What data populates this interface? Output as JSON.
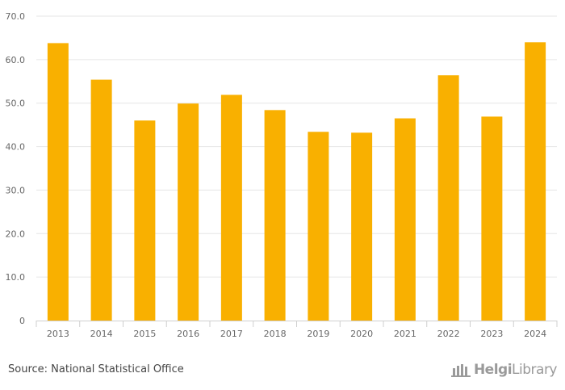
{
  "chart_data": {
    "type": "bar",
    "categories": [
      "2013",
      "2014",
      "2015",
      "2016",
      "2017",
      "2018",
      "2019",
      "2020",
      "2021",
      "2022",
      "2023",
      "2024"
    ],
    "values": [
      63.8,
      55.4,
      46.0,
      49.9,
      51.9,
      48.4,
      43.4,
      43.2,
      46.5,
      56.4,
      46.9,
      64.0
    ],
    "ylim": [
      0,
      70
    ],
    "yticks": [
      0,
      10,
      20,
      30,
      40,
      50,
      60,
      70
    ],
    "ytick_labels": [
      "0",
      "10.0",
      "20.0",
      "30.0",
      "40.0",
      "50.0",
      "60.0",
      "70.0"
    ],
    "title": "",
    "xlabel": "",
    "ylabel": "",
    "grid": true,
    "bar_color": "#F9B000"
  },
  "footer": {
    "source": "Source: National Statistical Office",
    "brand_part1": "Helgi",
    "brand_part2": "Library",
    "brand_icon": "helgi-library-logo-icon"
  }
}
